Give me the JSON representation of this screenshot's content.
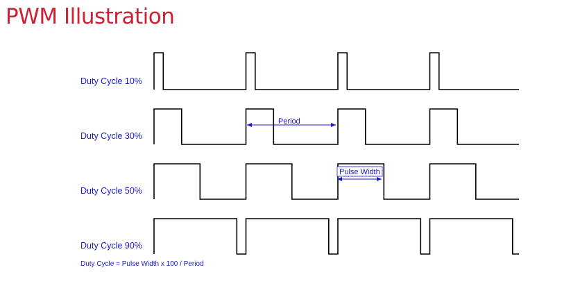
{
  "title": "PWM Illustration",
  "colors": {
    "title": "#cc2233",
    "label": "#1a1acc",
    "waveform": "#000000",
    "annotation": "#1a1acc"
  },
  "rows": [
    {
      "label": "Duty Cycle 10%",
      "duty_percent": 10
    },
    {
      "label": "Duty Cycle 30%",
      "duty_percent": 30
    },
    {
      "label": "Duty Cycle 50%",
      "duty_percent": 50
    },
    {
      "label": "Duty Cycle 90%",
      "duty_percent": 90
    }
  ],
  "periods_shown": 4,
  "annotations": {
    "period": "Period",
    "pulse_width": "Pulse Width"
  },
  "formula": "Duty Cycle = Pulse Width x 100 / Period"
}
